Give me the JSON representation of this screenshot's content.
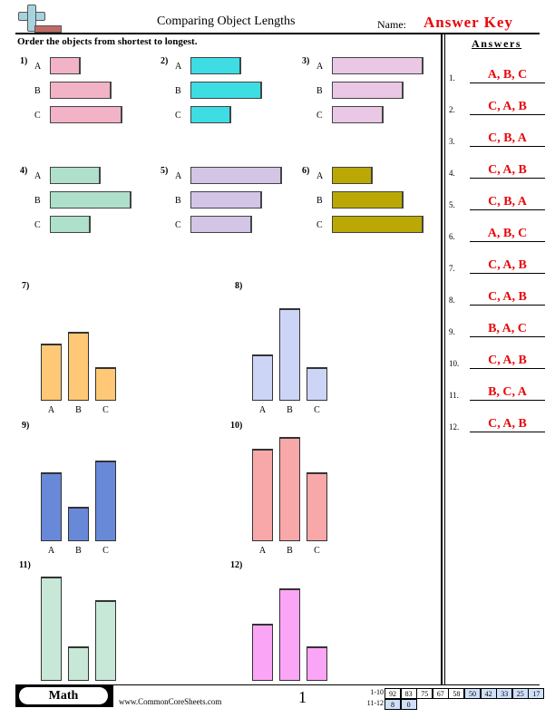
{
  "header": {
    "title": "Comparing Object Lengths",
    "name_label": "Name:",
    "name_value": "Answer Key",
    "logo_icon": "plus-ruler-logo-icon"
  },
  "instructions": "Order the objects from shortest to longest.",
  "answers": {
    "title": "Answers",
    "items": [
      {
        "num": "1.",
        "value": "A, B, C"
      },
      {
        "num": "2.",
        "value": "C, A, B"
      },
      {
        "num": "3.",
        "value": "C, B, A"
      },
      {
        "num": "4.",
        "value": "C, A, B"
      },
      {
        "num": "5.",
        "value": "C, B, A"
      },
      {
        "num": "6.",
        "value": "A, B, C"
      },
      {
        "num": "7.",
        "value": "C, A, B"
      },
      {
        "num": "8.",
        "value": "C, A, B"
      },
      {
        "num": "9.",
        "value": "B, A, C"
      },
      {
        "num": "10.",
        "value": "C, A, B"
      },
      {
        "num": "11.",
        "value": "B, C, A"
      },
      {
        "num": "12.",
        "value": "C, A, B"
      }
    ]
  },
  "horizontal_problems": [
    {
      "num": "1)",
      "color": "#f2b3c6",
      "labels": [
        "A",
        "B",
        "C"
      ],
      "lengths": [
        34,
        68,
        80
      ]
    },
    {
      "num": "2)",
      "color": "#3ddde3",
      "labels": [
        "A",
        "B",
        "C"
      ],
      "lengths": [
        56,
        79,
        45
      ]
    },
    {
      "num": "3)",
      "color": "#e9c7e5",
      "labels": [
        "A",
        "B",
        "C"
      ],
      "lengths": [
        101,
        79,
        57
      ]
    },
    {
      "num": "4)",
      "color": "#aee0cb",
      "labels": [
        "A",
        "B",
        "C"
      ],
      "lengths": [
        56,
        90,
        45
      ]
    },
    {
      "num": "5)",
      "color": "#d3c5e6",
      "labels": [
        "A",
        "B",
        "C"
      ],
      "lengths": [
        101,
        79,
        68
      ]
    },
    {
      "num": "6)",
      "color": "#bba804",
      "labels": [
        "A",
        "B",
        "C"
      ],
      "lengths": [
        45,
        79,
        101
      ]
    }
  ],
  "vertical_problems": [
    {
      "num": "7)",
      "color": "#fec876",
      "labels": [
        "A",
        "B",
        "C"
      ],
      "heights": [
        63,
        76,
        37
      ]
    },
    {
      "num": "8)",
      "color": "#cdd5f7",
      "labels": [
        "A",
        "B",
        "C"
      ],
      "heights": [
        51,
        102,
        37
      ]
    },
    {
      "num": "9)",
      "color": "#6888d8",
      "labels": [
        "A",
        "B",
        "C"
      ],
      "heights": [
        76,
        38,
        89
      ]
    },
    {
      "num": "10)",
      "color": "#f9a8aa",
      "labels": [
        "A",
        "B",
        "C"
      ],
      "heights": [
        102,
        115,
        76
      ]
    },
    {
      "num": "11)",
      "color": "#c7e7d7",
      "labels": [
        "A",
        "B",
        "C"
      ],
      "heights": [
        115,
        38,
        89
      ]
    },
    {
      "num": "12)",
      "color": "#fba5f6",
      "labels": [
        "A",
        "B",
        "C"
      ],
      "heights": [
        63,
        102,
        38
      ]
    }
  ],
  "footer": {
    "subject": "Math",
    "site": "www.CommonCoreSheets.com",
    "page": "1",
    "score_rows": [
      {
        "label": "1-10",
        "cells": [
          "92",
          "83",
          "75",
          "67",
          "58",
          "50",
          "42",
          "33",
          "25",
          "17"
        ]
      },
      {
        "label": "11-12",
        "cells": [
          "8",
          "0"
        ]
      }
    ]
  }
}
